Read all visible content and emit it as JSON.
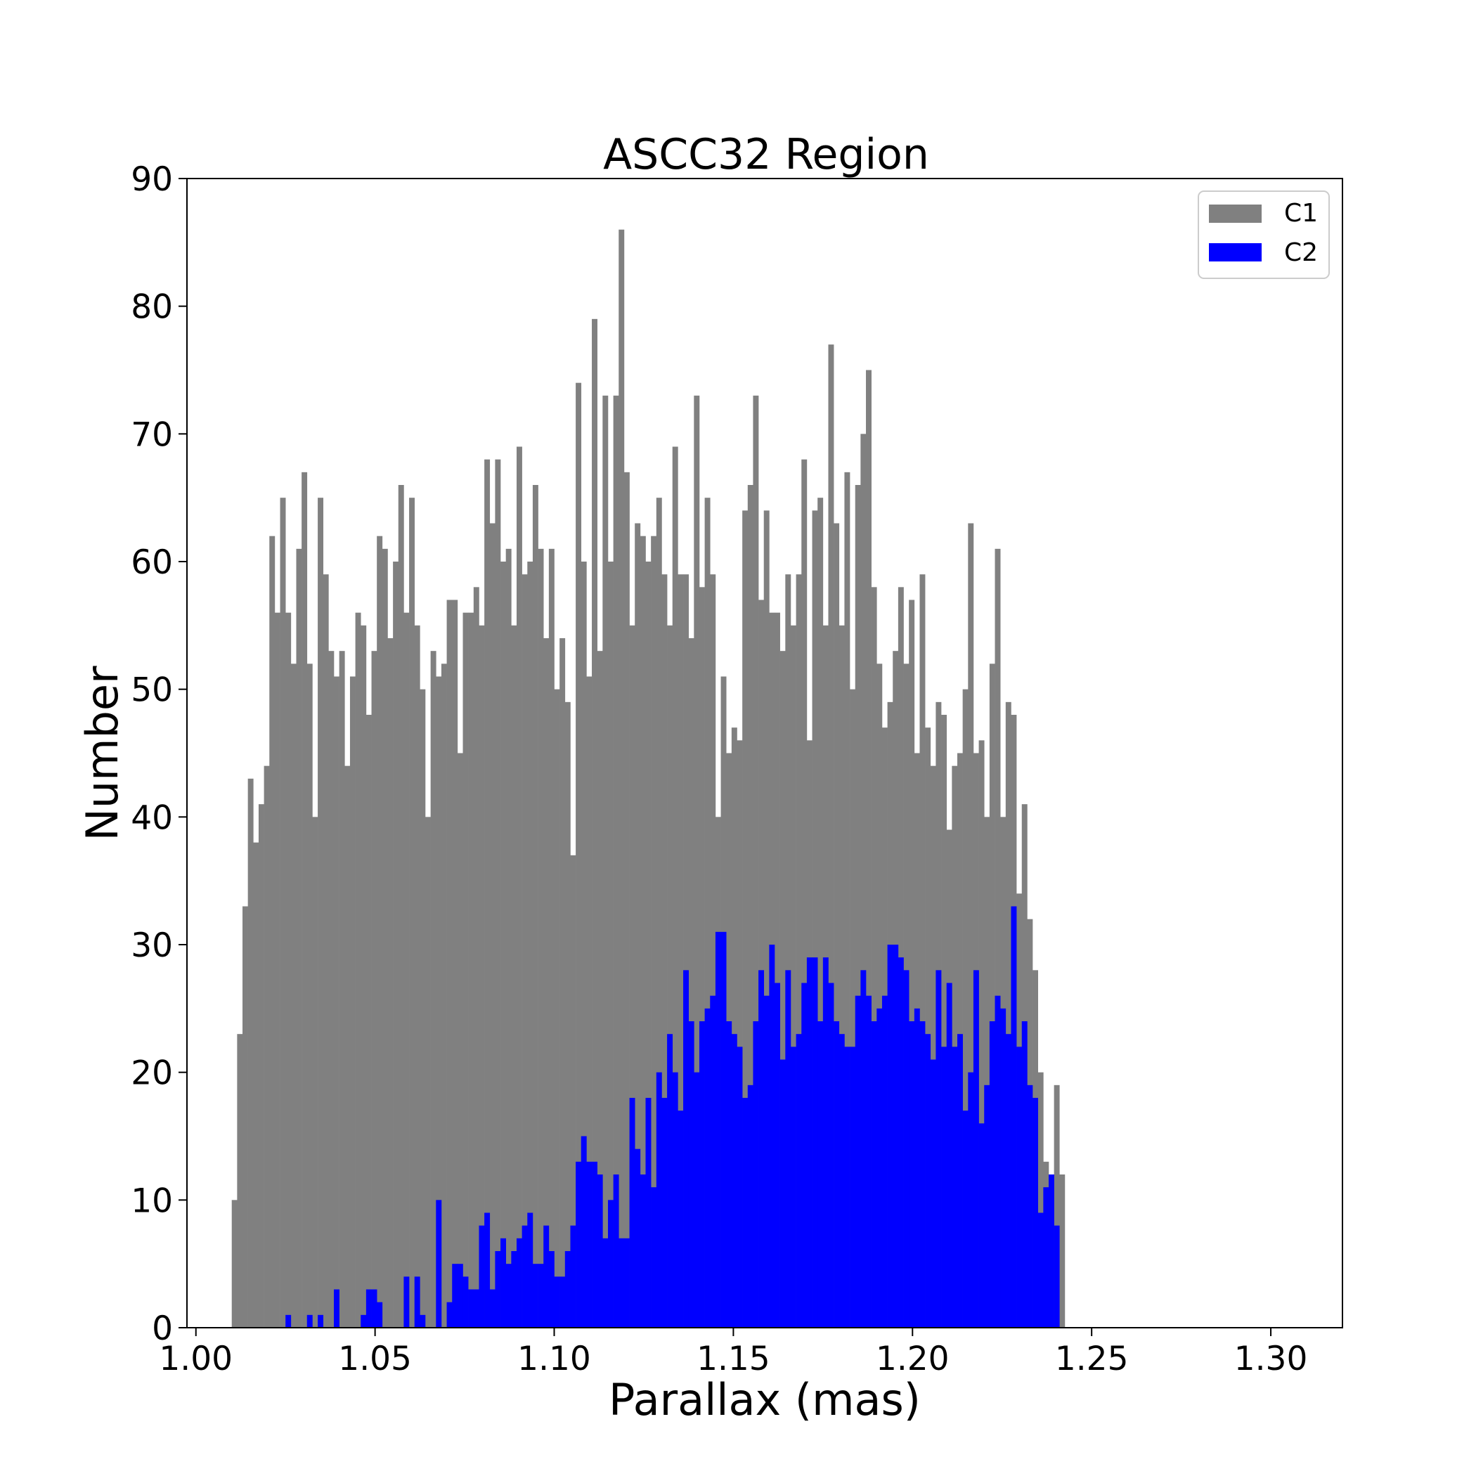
{
  "chart_data": {
    "type": "bar",
    "title": "ASCC32 Region",
    "xlabel": "Parallax (mas)",
    "ylabel": "Number",
    "xlim": [
      0.9975,
      1.32
    ],
    "ylim": [
      0,
      90
    ],
    "bin_start": 1.01,
    "bin_width": 0.0015,
    "x_ticks": [
      1.0,
      1.05,
      1.1,
      1.15,
      1.2,
      1.25,
      1.3
    ],
    "x_tick_labels": [
      "1.00",
      "1.05",
      "1.10",
      "1.15",
      "1.20",
      "1.25",
      "1.30"
    ],
    "y_ticks": [
      0,
      10,
      20,
      30,
      40,
      50,
      60,
      70,
      80,
      90
    ],
    "y_tick_labels": [
      "0",
      "10",
      "20",
      "30",
      "40",
      "50",
      "60",
      "70",
      "80",
      "90"
    ],
    "legend_position": "top-right",
    "series": [
      {
        "name": "C1",
        "color": "#808080",
        "values": [
          10,
          23,
          33,
          43,
          38,
          41,
          44,
          62,
          56,
          65,
          56,
          52,
          61,
          67,
          52,
          40,
          65,
          59,
          53,
          51,
          53,
          44,
          51,
          56,
          55,
          48,
          53,
          62,
          61,
          54,
          60,
          66,
          56,
          65,
          55,
          50,
          40,
          53,
          51,
          52,
          57,
          57,
          45,
          56,
          56,
          58,
          55,
          68,
          63,
          68,
          60,
          61,
          55,
          69,
          59,
          60,
          66,
          61,
          54,
          61,
          50,
          54,
          49,
          37,
          74,
          60,
          51,
          79,
          53,
          73,
          60,
          73,
          86,
          67,
          55,
          63,
          62,
          60,
          62,
          65,
          59,
          55,
          69,
          59,
          59,
          54,
          73,
          58,
          65,
          59,
          40,
          51,
          45,
          47,
          46,
          64,
          66,
          73,
          57,
          64,
          56,
          56,
          53,
          59,
          55,
          59,
          68,
          46,
          64,
          65,
          55,
          77,
          63,
          55,
          67,
          50,
          66,
          70,
          75,
          58,
          52,
          47,
          49,
          53,
          58,
          52,
          57,
          45,
          59,
          47,
          44,
          49,
          48,
          39,
          44,
          45,
          50,
          63,
          45,
          46,
          40,
          52,
          61,
          40,
          49,
          48,
          34,
          41,
          32,
          28,
          20,
          13,
          8,
          19,
          12
        ]
      },
      {
        "name": "C2",
        "color": "#0000ff",
        "values": [
          0,
          0,
          0,
          0,
          0,
          0,
          0,
          0,
          0,
          0,
          1,
          0,
          0,
          0,
          1,
          0,
          1,
          0,
          0,
          3,
          0,
          0,
          0,
          0,
          1,
          3,
          3,
          2,
          0,
          0,
          0,
          0,
          4,
          0,
          4,
          1,
          0,
          0,
          10,
          0,
          2,
          5,
          5,
          4,
          3,
          3,
          8,
          9,
          3,
          6,
          7,
          5,
          6,
          7,
          8,
          9,
          5,
          5,
          8,
          6,
          4,
          4,
          6,
          8,
          13,
          15,
          13,
          13,
          12,
          7,
          10,
          12,
          7,
          7,
          18,
          14,
          12,
          18,
          11,
          20,
          18,
          23,
          20,
          17,
          28,
          24,
          20,
          24,
          25,
          26,
          31,
          31,
          24,
          23,
          22,
          18,
          19,
          24,
          28,
          26,
          30,
          27,
          21,
          28,
          22,
          23,
          27,
          29,
          29,
          24,
          29,
          27,
          24,
          23,
          22,
          22,
          26,
          28,
          26,
          24,
          25,
          26,
          30,
          30,
          29,
          28,
          24,
          25,
          24,
          23,
          21,
          28,
          22,
          27,
          22,
          23,
          17,
          20,
          28,
          16,
          19,
          24,
          26,
          25,
          23,
          33,
          22,
          24,
          19,
          18,
          9,
          11,
          12,
          8,
          0
        ]
      }
    ]
  }
}
